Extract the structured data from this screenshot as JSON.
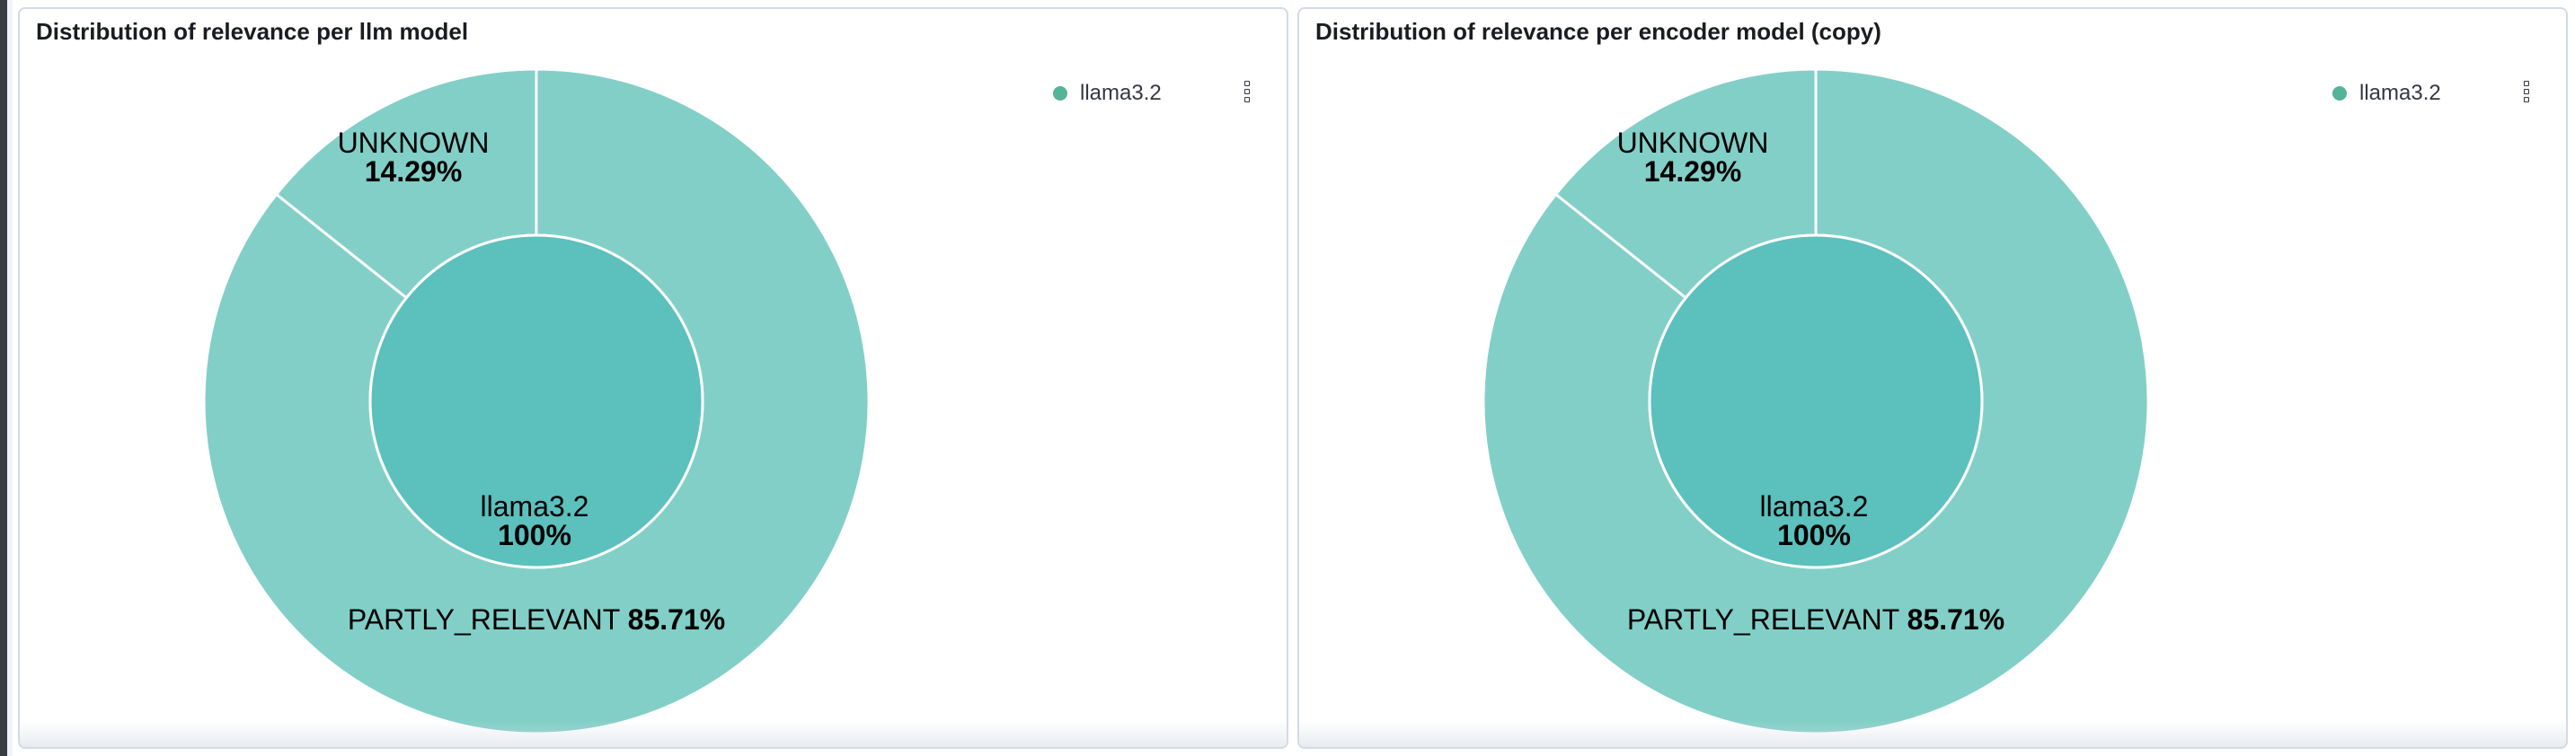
{
  "colors": {
    "outer_ring": "#82cfc8",
    "inner_ring": "#5cc0bd",
    "legend_dot": "#54b399",
    "separator": "#ffffff"
  },
  "panels": [
    {
      "title": "Distribution of relevance per llm model",
      "legend": [
        {
          "label": "llama3.2"
        }
      ],
      "menu_icon": "vertical-dots-icon",
      "chart_data": {
        "type": "pie",
        "inner": [
          {
            "label": "llama3.2",
            "value": 100,
            "display": "100%"
          }
        ],
        "outer": [
          {
            "label": "UNKNOWN",
            "value": 14.29,
            "display": "14.29%"
          },
          {
            "label": "PARTLY_RELEVANT",
            "value": 85.71,
            "display": "85.71%"
          }
        ]
      }
    },
    {
      "title": "Distribution of relevance per encoder model (copy)",
      "legend": [
        {
          "label": "llama3.2"
        }
      ],
      "menu_icon": "vertical-dots-icon",
      "chart_data": {
        "type": "pie",
        "inner": [
          {
            "label": "llama3.2",
            "value": 100,
            "display": "100%"
          }
        ],
        "outer": [
          {
            "label": "UNKNOWN",
            "value": 14.29,
            "display": "14.29%"
          },
          {
            "label": "PARTLY_RELEVANT",
            "value": 85.71,
            "display": "85.71%"
          }
        ]
      }
    }
  ]
}
